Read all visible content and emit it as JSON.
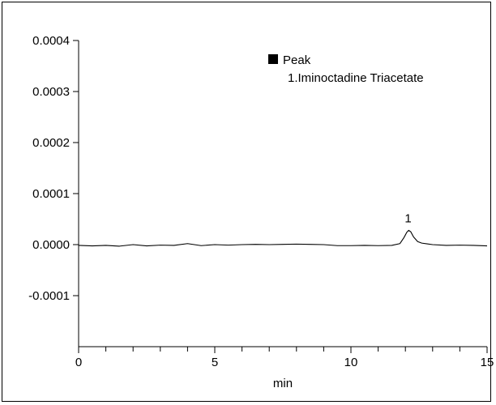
{
  "chart_data": {
    "type": "line",
    "title": "",
    "xlabel": "min",
    "ylabel": "",
    "xlim": [
      0,
      15
    ],
    "ylim": [
      -0.0002,
      0.0004
    ],
    "x_ticks": [
      0,
      5,
      10,
      15
    ],
    "x_tick_labels": [
      "0",
      "5",
      "10",
      "15"
    ],
    "y_ticks": [
      0.0004,
      0.0003,
      0.0002,
      0.0001,
      0.0,
      -0.0001
    ],
    "y_tick_labels": [
      "0.0004",
      "0.0003",
      "0.0002",
      "0.0001",
      "0.0000",
      "-0.0001"
    ],
    "grid": false,
    "legend": {
      "placement": "top-right",
      "marker_color": "#000000",
      "lines": [
        "Peak",
        "1.Iminoctadine Triacetate"
      ]
    },
    "series": [
      {
        "color": "#000000",
        "x": [
          0,
          0.5,
          1.0,
          1.5,
          2.0,
          2.5,
          3.0,
          3.5,
          4.0,
          4.5,
          5.0,
          5.5,
          6.0,
          6.5,
          7.0,
          7.5,
          8.0,
          8.5,
          9.0,
          9.5,
          10.0,
          10.5,
          11.0,
          11.5,
          11.8,
          11.95,
          12.05,
          12.12,
          12.2,
          12.3,
          12.45,
          12.6,
          12.8,
          13.0,
          13.5,
          14.0,
          14.5,
          15.0
        ],
        "y": [
          -1.5e-06,
          -2.5e-06,
          -1.5e-06,
          -3e-06,
          0.0,
          -2.5e-06,
          -1e-06,
          -1.5e-06,
          2e-06,
          -2e-06,
          0.0,
          -1e-06,
          0.0,
          5e-07,
          0.0,
          5e-07,
          1e-06,
          5e-07,
          0.0,
          -2e-06,
          -2e-06,
          -1.5e-06,
          -2e-06,
          -1.5e-06,
          2e-06,
          1.4e-05,
          2.4e-05,
          2.8e-05,
          2.5e-05,
          1.5e-05,
          6e-06,
          3e-06,
          1.5e-06,
          0.0,
          -1.5e-06,
          -1e-06,
          -1.5e-06,
          -2.5e-06
        ]
      }
    ],
    "annotations": [
      {
        "text": "1",
        "x": 12.1,
        "y": 2.8e-05
      }
    ]
  }
}
